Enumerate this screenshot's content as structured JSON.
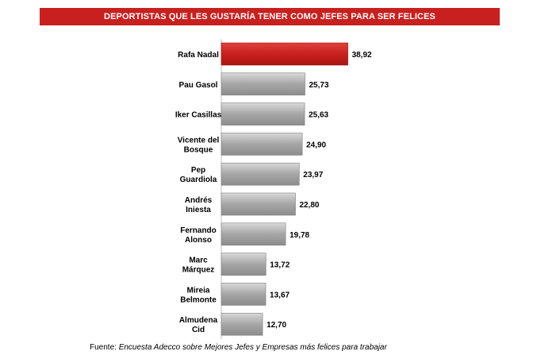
{
  "colors": {
    "title_bg": "#c8201e",
    "highlight_bar": "#c8201e",
    "default_bar": "#a6a6a6"
  },
  "chart_data": {
    "type": "bar",
    "orientation": "horizontal",
    "title": "DEPORTISTAS QUE LES GUSTARÍA TENER COMO JEFES PARA SER FELICES",
    "categories": [
      [
        "Rafa Nadal"
      ],
      [
        "Pau Gasol"
      ],
      [
        "Iker Casillas"
      ],
      [
        "Vicente del",
        "Bosque"
      ],
      [
        "Pep",
        "Guardiola"
      ],
      [
        "Andrés",
        "Iniesta"
      ],
      [
        "Fernando",
        "Alonso"
      ],
      [
        "Marc",
        "Márquez"
      ],
      [
        "Mireia",
        "Belmonte"
      ],
      [
        "Almudena",
        "Cid"
      ]
    ],
    "values": [
      38.92,
      25.73,
      25.63,
      24.9,
      23.97,
      22.8,
      19.78,
      13.72,
      13.67,
      12.7
    ],
    "value_labels": [
      "38,92",
      "25,73",
      "25,63",
      "24,90",
      "23,97",
      "22,80",
      "19,78",
      "13,72",
      "13,67",
      "12,70"
    ],
    "highlight_index": 0,
    "grid": false,
    "legend": "none"
  },
  "source": {
    "prefix": "Fuente: ",
    "text": "Encuesta Adecco sobre Mejores Jefes y Empresas más felices para trabajar"
  }
}
